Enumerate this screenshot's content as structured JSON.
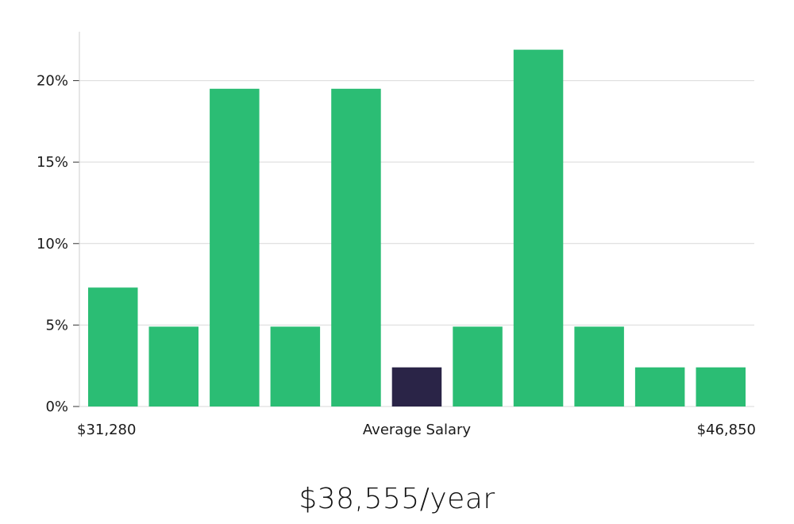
{
  "headline": "$38,555/year",
  "colors": {
    "bar": "#2bbd74",
    "bar_highlight": "#2a2447",
    "grid": "#d9d9d9",
    "axis": "#cccccc"
  },
  "chart_data": {
    "type": "bar",
    "categories": [
      "1",
      "2",
      "3",
      "4",
      "5",
      "6",
      "7",
      "8",
      "9",
      "10",
      "11"
    ],
    "values": [
      7.3,
      4.9,
      19.5,
      4.9,
      19.5,
      2.4,
      4.9,
      21.9,
      4.9,
      2.4,
      2.4
    ],
    "highlight_index": 5,
    "ylim": [
      0,
      23
    ],
    "yticks": [
      0,
      5,
      10,
      15,
      20
    ],
    "ytick_labels": [
      "0%",
      "5%",
      "10%",
      "15%",
      "20%"
    ],
    "x_labels": {
      "left": "$31,280",
      "center": "Average Salary",
      "right": "$46,850"
    },
    "grid": true
  }
}
